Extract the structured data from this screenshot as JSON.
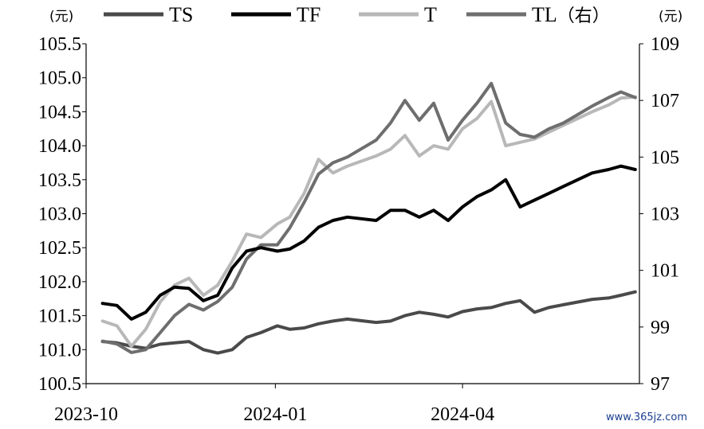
{
  "chart_data": {
    "type": "line",
    "left_axis": {
      "unit": "(元)",
      "ylim": [
        100.5,
        105.5
      ],
      "ticks": [
        "100.5",
        "101.0",
        "101.5",
        "102.0",
        "102.5",
        "103.0",
        "103.5",
        "104.0",
        "104.5",
        "105.0",
        "105.5"
      ]
    },
    "right_axis": {
      "unit": "(元)",
      "ylim": [
        97,
        109
      ],
      "ticks": [
        "97",
        "99",
        "101",
        "103",
        "105",
        "107",
        "109"
      ]
    },
    "x_axis": {
      "ticks": [
        "2023-10",
        "2024-01",
        "2024-04"
      ]
    },
    "x": [
      "2023-10-09",
      "2023-10-16",
      "2023-10-23",
      "2023-10-30",
      "2023-11-06",
      "2023-11-13",
      "2023-11-20",
      "2023-11-27",
      "2023-12-04",
      "2023-12-11",
      "2023-12-18",
      "2023-12-25",
      "2024-01-02",
      "2024-01-08",
      "2024-01-15",
      "2024-01-22",
      "2024-01-29",
      "2024-02-05",
      "2024-02-19",
      "2024-02-26",
      "2024-03-04",
      "2024-03-11",
      "2024-03-18",
      "2024-03-25",
      "2024-04-01",
      "2024-04-08",
      "2024-04-15",
      "2024-04-22",
      "2024-04-29",
      "2024-05-06",
      "2024-05-13",
      "2024-05-20",
      "2024-05-27",
      "2024-06-03",
      "2024-06-11",
      "2024-06-17",
      "2024-06-24"
    ],
    "series": [
      {
        "name": "TS",
        "axis": "left",
        "color": "#4a4a4a",
        "values": [
          101.12,
          101.1,
          101.05,
          101.02,
          101.08,
          101.1,
          101.12,
          101.0,
          100.95,
          101.0,
          101.18,
          101.25,
          101.35,
          101.3,
          101.32,
          101.38,
          101.42,
          101.45,
          101.4,
          101.42,
          101.5,
          101.55,
          101.52,
          101.48,
          101.56,
          101.6,
          101.62,
          101.68,
          101.72,
          101.55,
          101.62,
          101.66,
          101.7,
          101.74,
          101.76,
          101.8,
          101.85
        ]
      },
      {
        "name": "TF",
        "axis": "left",
        "color": "#000000",
        "values": [
          101.68,
          101.65,
          101.45,
          101.55,
          101.8,
          101.92,
          101.9,
          101.72,
          101.8,
          102.2,
          102.45,
          102.5,
          102.45,
          102.48,
          102.6,
          102.8,
          102.9,
          102.95,
          102.9,
          103.05,
          103.05,
          102.95,
          103.05,
          102.9,
          103.1,
          103.25,
          103.35,
          103.5,
          103.1,
          103.2,
          103.3,
          103.4,
          103.5,
          103.6,
          103.65,
          103.7,
          103.65
        ]
      },
      {
        "name": "T",
        "axis": "left",
        "color": "#b8b8b8",
        "values": [
          101.42,
          101.35,
          101.05,
          101.3,
          101.7,
          101.95,
          102.05,
          101.8,
          101.95,
          102.3,
          102.7,
          102.65,
          102.85,
          102.95,
          103.3,
          103.8,
          103.6,
          103.7,
          103.85,
          103.95,
          104.15,
          103.85,
          104.0,
          103.95,
          104.25,
          104.4,
          104.65,
          104.0,
          104.05,
          104.1,
          104.2,
          104.3,
          104.4,
          104.5,
          104.6,
          104.7,
          104.72
        ]
      },
      {
        "name": "TL（右）",
        "axis": "right",
        "color": "#6e6e6e",
        "values": [
          98.5,
          98.4,
          98.1,
          98.2,
          98.8,
          99.4,
          99.8,
          99.6,
          99.9,
          100.4,
          101.4,
          101.9,
          101.9,
          102.5,
          103.4,
          104.4,
          104.8,
          105.0,
          105.6,
          106.2,
          107.0,
          106.3,
          106.9,
          105.6,
          106.3,
          106.9,
          107.6,
          106.2,
          105.8,
          105.7,
          106.0,
          106.2,
          106.5,
          106.8,
          107.1,
          107.3,
          107.1
        ]
      }
    ]
  },
  "watermark": "www.365jz.com"
}
